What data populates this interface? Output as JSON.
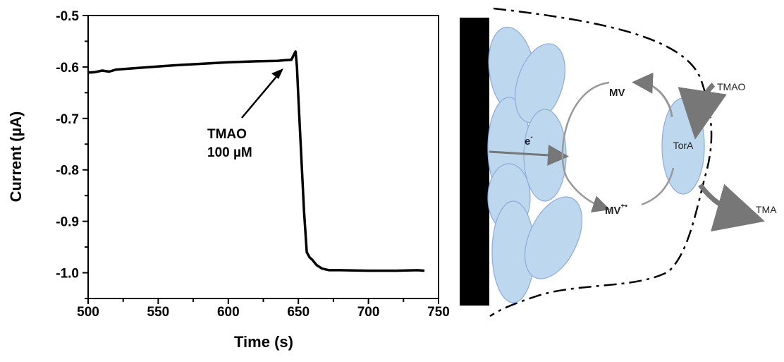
{
  "chart_data": {
    "type": "line",
    "title": "",
    "xlabel": "Time (s)",
    "ylabel": "Current (µA)",
    "xlim": [
      500,
      750
    ],
    "ylim": [
      -1.05,
      -0.5
    ],
    "xticks": [
      500,
      550,
      600,
      650,
      700,
      750
    ],
    "xtick_labels": [
      "500",
      "550",
      "600",
      "650",
      "700",
      "750"
    ],
    "yticks": [
      -0.5,
      -0.6,
      -0.7,
      -0.8,
      -0.9,
      -1.0
    ],
    "ytick_labels": [
      "-0.5",
      "-0.6",
      "-0.7",
      "-0.8",
      "-0.9",
      "-1.0"
    ],
    "grid": false,
    "series": [
      {
        "x": [
          500,
          505,
          510,
          515,
          520,
          540,
          560,
          580,
          600,
          620,
          635,
          640,
          645,
          647,
          648,
          649,
          650,
          652,
          654,
          656,
          658,
          660,
          663,
          667,
          672,
          680,
          700,
          720,
          735,
          740
        ],
        "y": [
          -0.611,
          -0.61,
          -0.607,
          -0.609,
          -0.605,
          -0.601,
          -0.597,
          -0.594,
          -0.591,
          -0.589,
          -0.588,
          -0.587,
          -0.586,
          -0.575,
          -0.57,
          -0.6,
          -0.66,
          -0.77,
          -0.88,
          -0.96,
          -0.97,
          -0.975,
          -0.985,
          -0.992,
          -0.995,
          -0.995,
          -0.996,
          -0.996,
          -0.995,
          -0.996
        ]
      }
    ],
    "annotations": [
      {
        "line1": "TMAO",
        "line2": "100 µM",
        "points_to_x": 640,
        "points_to_y": -0.587
      }
    ]
  },
  "diagram": {
    "labels": {
      "electron": "e",
      "electron_sup": "-",
      "mv": "MV",
      "mv_reduced": "MV",
      "mv_reduced_sup": "+•",
      "enzyme": "TorA",
      "substrate": "TMAO",
      "product": "TMA"
    },
    "colors": {
      "cell": "#bdd7ee",
      "cell_stroke": "#8faadc",
      "electrode": "#000000",
      "arrow": "#777777"
    }
  }
}
